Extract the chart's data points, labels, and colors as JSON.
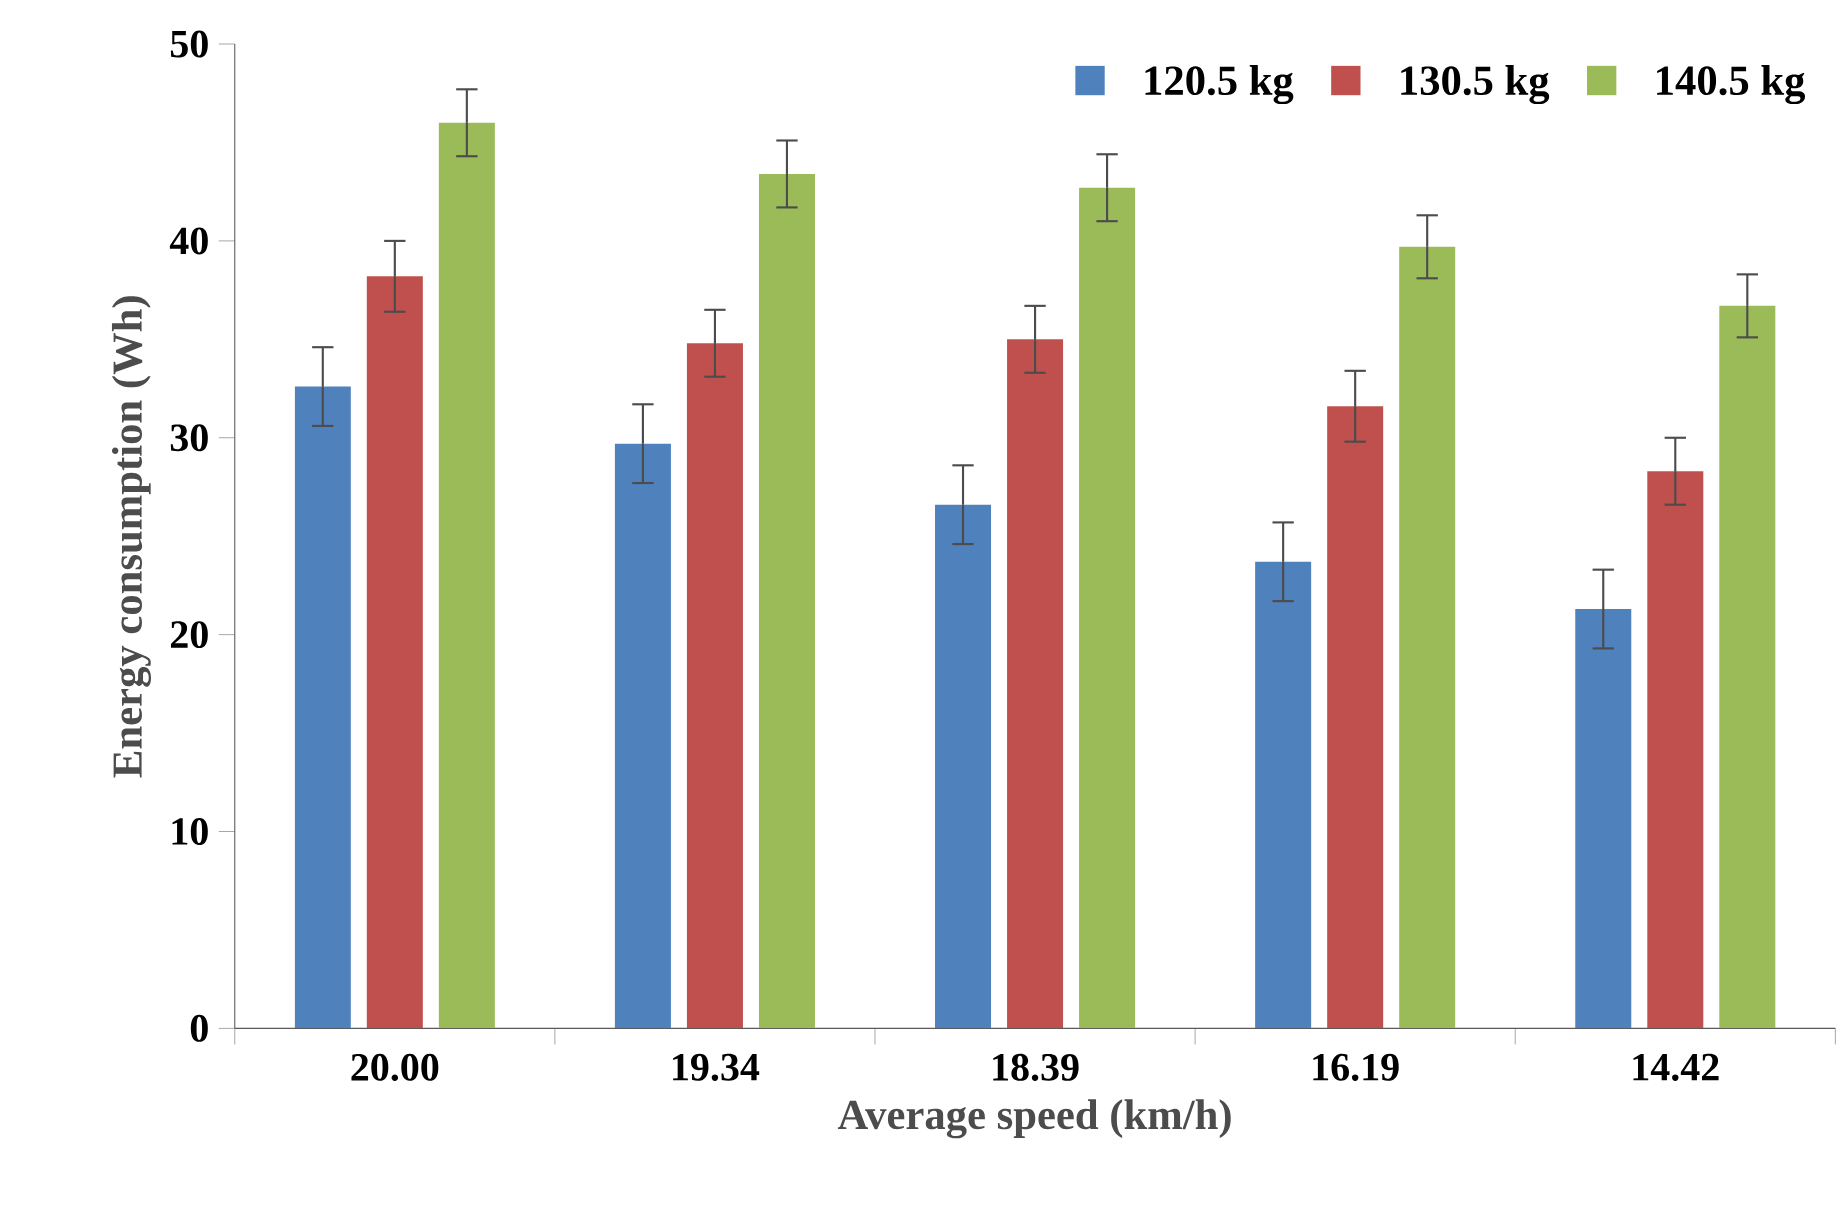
{
  "chart_data": {
    "type": "bar",
    "xlabel": "Average speed (km/h)",
    "ylabel": "Energy consumption (Wh)",
    "categories": [
      "20.00",
      "19.34",
      "18.39",
      "16.19",
      "14.42"
    ],
    "series": [
      {
        "name": "120.5 kg",
        "color": "#4f81bd",
        "values": [
          32.6,
          29.7,
          26.6,
          23.7,
          21.3
        ],
        "errors": [
          2,
          2,
          2,
          2,
          2
        ]
      },
      {
        "name": "130.5 kg",
        "color": "#c0504d",
        "values": [
          38.2,
          34.8,
          35.0,
          31.6,
          28.3
        ],
        "errors": [
          1.8,
          1.7,
          1.7,
          1.8,
          1.7
        ]
      },
      {
        "name": "140.5 kg",
        "color": "#9bbb59",
        "values": [
          46.0,
          43.4,
          42.7,
          39.7,
          36.7
        ],
        "errors": [
          1.7,
          1.7,
          1.7,
          1.6,
          1.6
        ]
      }
    ],
    "ylim": [
      0,
      50
    ],
    "yticks": [
      0,
      10,
      20,
      30,
      40,
      50
    ],
    "grid": false,
    "legend": "top right"
  }
}
